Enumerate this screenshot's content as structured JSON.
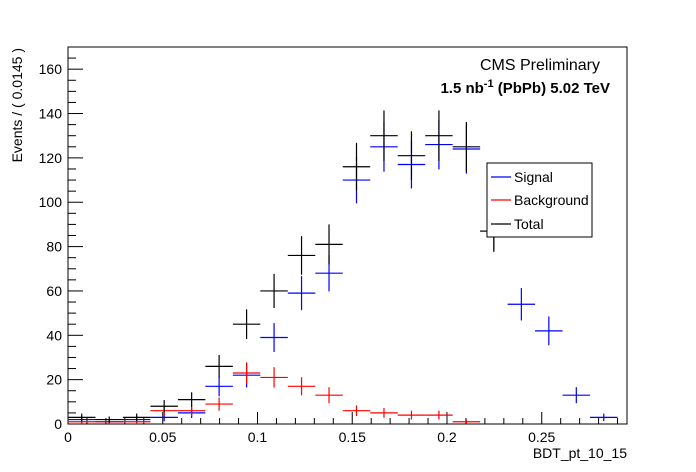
{
  "chart_data": {
    "type": "scatter",
    "style": "error-bar-crosses",
    "xlabel": "BDT_pt_10_15",
    "ylabel": "Events / ( 0.0145 )",
    "xlim": [
      0,
      0.295
    ],
    "ylim": [
      0,
      170
    ],
    "x_ticks": [
      "0",
      "0.05",
      "0.1",
      "0.15",
      "0.2",
      "0.25"
    ],
    "x_tick_values": [
      0,
      0.05,
      0.1,
      0.15,
      0.2,
      0.25
    ],
    "y_ticks": [
      "0",
      "20",
      "40",
      "60",
      "80",
      "100",
      "120",
      "140",
      "160"
    ],
    "y_tick_values": [
      0,
      20,
      40,
      60,
      80,
      100,
      120,
      140,
      160
    ],
    "bin_width": 0.0145,
    "grid": false,
    "legend_position": "right-middle",
    "annotation": {
      "line1": "CMS Preliminary",
      "line2_prefix": "1.5 nb",
      "line2_sup": "-1",
      "line2_suffix": " (PbPb) 5.02 TeV"
    },
    "series": [
      {
        "name": "Signal",
        "color": "#0000ff",
        "x": [
          0.00725,
          0.02175,
          0.03625,
          0.05075,
          0.06525,
          0.07975,
          0.09425,
          0.10875,
          0.12325,
          0.13775,
          0.15225,
          0.16675,
          0.18125,
          0.19575,
          0.21025,
          0.22475,
          0.23925,
          0.25375,
          0.26825,
          0.28275
        ],
        "y": [
          2,
          1,
          2,
          3,
          5,
          17,
          22,
          39,
          59,
          68,
          110,
          125,
          117,
          126,
          124,
          87,
          54,
          42,
          13,
          3
        ],
        "err": [
          1.5,
          1,
          1.5,
          1.8,
          2.3,
          4.5,
          5.5,
          6.5,
          7.7,
          8.2,
          10.5,
          11.2,
          10.8,
          11.2,
          11.1,
          9.3,
          7.3,
          6.5,
          3.6,
          1.7
        ]
      },
      {
        "name": "Background",
        "color": "#ff0000",
        "x": [
          0.00725,
          0.02175,
          0.03625,
          0.05075,
          0.06525,
          0.07975,
          0.09425,
          0.10875,
          0.12325,
          0.13775,
          0.15225,
          0.16675,
          0.18125,
          0.19575,
          0.21025
        ],
        "y": [
          1,
          1,
          1,
          6,
          6,
          9,
          23,
          21,
          17,
          13,
          6,
          5,
          4,
          4,
          1
        ],
        "err": [
          1,
          1,
          1,
          2.4,
          2.4,
          3,
          4.8,
          4.6,
          4.1,
          3.6,
          2.4,
          2.2,
          2,
          2,
          1
        ]
      },
      {
        "name": "Total",
        "color": "#000000",
        "x": [
          0.00725,
          0.02175,
          0.03625,
          0.05075,
          0.06525,
          0.07975,
          0.09425,
          0.10875,
          0.12325,
          0.13775,
          0.15225,
          0.16675,
          0.18125,
          0.19575,
          0.21025,
          0.22475
        ],
        "y": [
          3,
          2,
          3,
          8,
          11,
          26,
          45,
          60,
          76,
          81,
          116,
          130,
          121,
          130,
          125,
          87
        ],
        "err": [
          1.7,
          1.4,
          1.7,
          2.8,
          3.3,
          5.1,
          6.7,
          7.7,
          8.7,
          9,
          10.8,
          11.4,
          11,
          11.4,
          11.2,
          9.3
        ]
      }
    ]
  }
}
